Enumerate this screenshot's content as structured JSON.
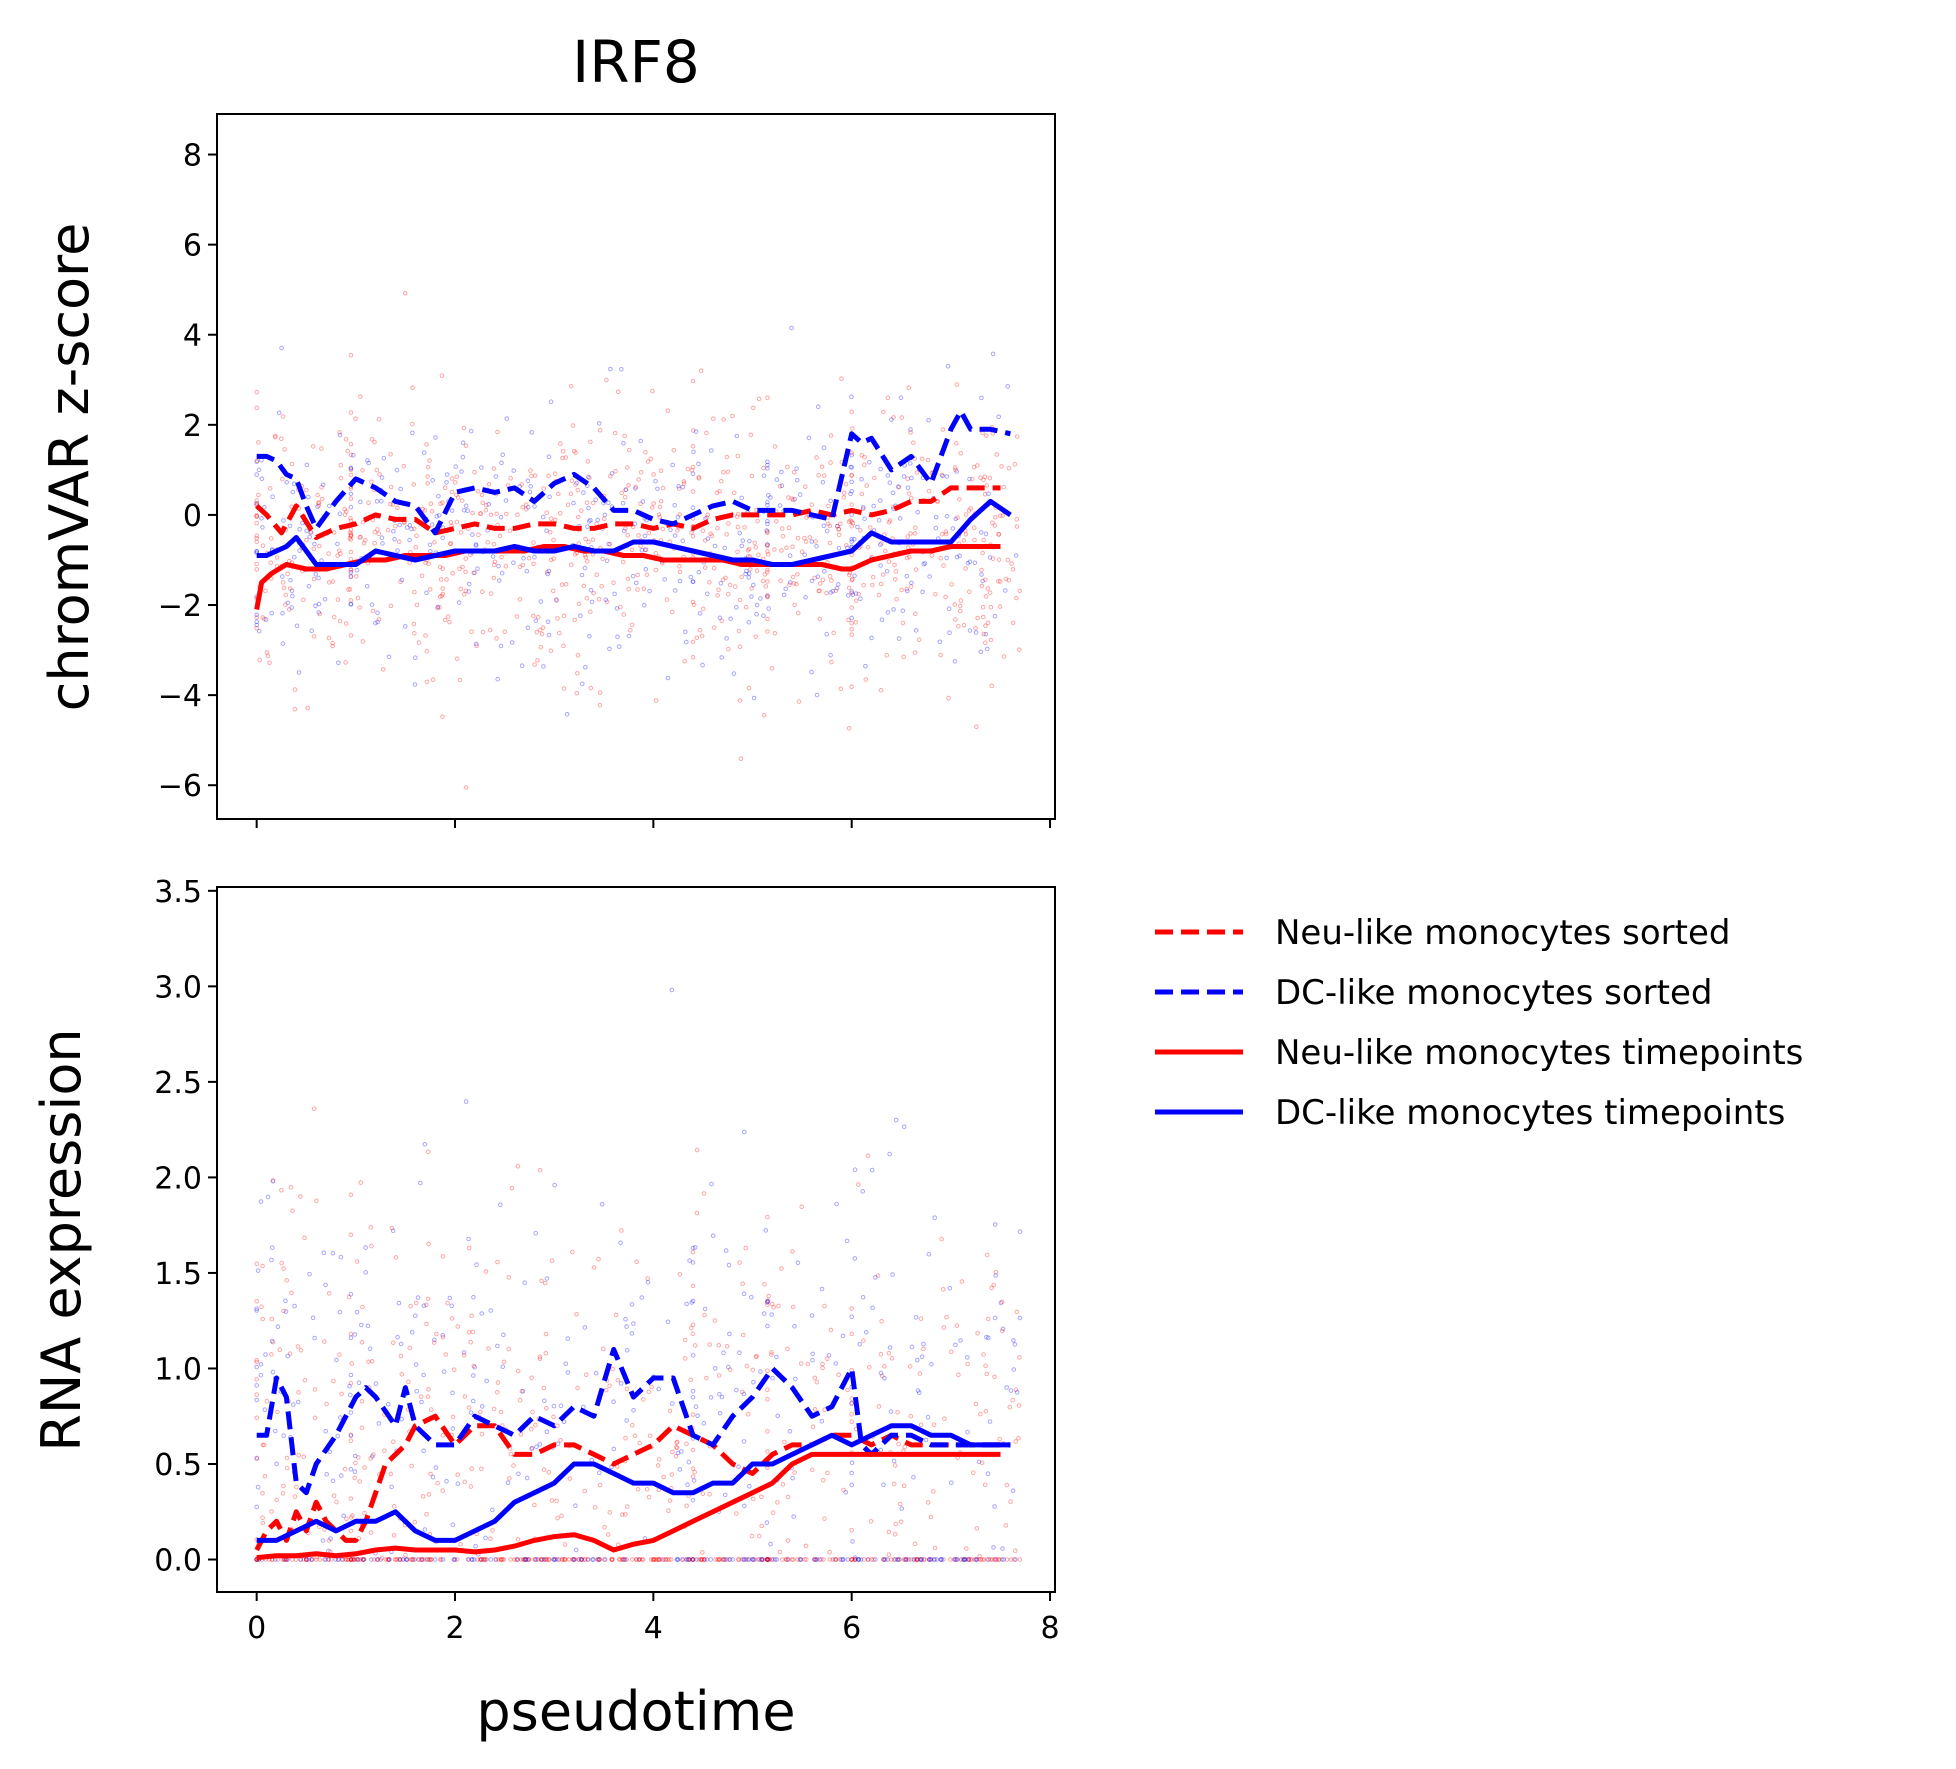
{
  "chart_data": [
    {
      "panel": "top",
      "type": "line",
      "title": "IRF8",
      "xlabel": "",
      "ylabel": "chromVAR z-score",
      "xlim": [
        -0.4,
        8.05
      ],
      "ylim": [
        -6.75,
        8.9
      ],
      "xticks": [
        0,
        2,
        4,
        6,
        8
      ],
      "xtick_labels_visible": false,
      "yticks": [
        -6,
        -4,
        -2,
        0,
        2,
        4,
        6,
        8
      ],
      "ytick_labels": [
        "−6",
        "−4",
        "−2",
        "0",
        "2",
        "4",
        "6",
        "8"
      ],
      "grid": false,
      "scatter": "dense red and blue points, roughly -5 to 8",
      "series": [
        {
          "name": "Neu-like monocytes sorted",
          "style": "dashed",
          "color": "#ff0000",
          "x": [
            0,
            0.1,
            0.25,
            0.4,
            0.6,
            0.8,
            1.0,
            1.2,
            1.4,
            1.6,
            1.8,
            2.0,
            2.2,
            2.4,
            2.6,
            2.8,
            3.0,
            3.2,
            3.4,
            3.6,
            3.8,
            4.0,
            4.2,
            4.4,
            4.6,
            4.8,
            5.0,
            5.2,
            5.4,
            5.6,
            5.8,
            6.0,
            6.2,
            6.4,
            6.6,
            6.8,
            7.0,
            7.2,
            7.5
          ],
          "y": [
            0.2,
            0.0,
            -0.4,
            0.2,
            -0.5,
            -0.3,
            -0.2,
            0.0,
            -0.1,
            -0.1,
            -0.4,
            -0.3,
            -0.2,
            -0.3,
            -0.3,
            -0.2,
            -0.2,
            -0.3,
            -0.3,
            -0.2,
            -0.2,
            -0.3,
            -0.2,
            -0.3,
            -0.1,
            0.0,
            0.0,
            0.0,
            0.0,
            0.1,
            0.0,
            0.1,
            0.0,
            0.1,
            0.3,
            0.3,
            0.6,
            0.6,
            0.6
          ]
        },
        {
          "name": "DC-like monocytes sorted",
          "style": "dashed",
          "color": "#0000ff",
          "x": [
            0,
            0.1,
            0.2,
            0.3,
            0.4,
            0.5,
            0.6,
            0.8,
            1.0,
            1.2,
            1.4,
            1.6,
            1.8,
            2.0,
            2.2,
            2.4,
            2.6,
            2.8,
            3.0,
            3.2,
            3.4,
            3.6,
            3.8,
            4.0,
            4.2,
            4.4,
            4.6,
            4.8,
            5.0,
            5.2,
            5.4,
            5.6,
            5.8,
            6.0,
            6.1,
            6.2,
            6.4,
            6.6,
            6.8,
            7.0,
            7.1,
            7.2,
            7.4,
            7.6
          ],
          "y": [
            1.3,
            1.3,
            1.2,
            0.9,
            0.8,
            0.2,
            -0.3,
            0.3,
            0.8,
            0.6,
            0.3,
            0.2,
            -0.4,
            0.5,
            0.6,
            0.5,
            0.6,
            0.3,
            0.7,
            0.9,
            0.6,
            0.1,
            0.1,
            -0.1,
            -0.2,
            0.0,
            0.2,
            0.3,
            0.1,
            0.1,
            0.1,
            0.0,
            -0.1,
            1.8,
            1.6,
            1.7,
            1.0,
            1.3,
            0.7,
            1.9,
            2.3,
            1.9,
            1.9,
            1.8
          ]
        },
        {
          "name": "Neu-like monocytes timepoints",
          "style": "solid",
          "color": "#ff0000",
          "x": [
            0,
            0.05,
            0.15,
            0.3,
            0.5,
            0.7,
            0.9,
            1.1,
            1.3,
            1.5,
            1.7,
            1.9,
            2.1,
            2.3,
            2.5,
            2.7,
            2.9,
            3.1,
            3.3,
            3.5,
            3.7,
            3.9,
            4.1,
            4.3,
            4.5,
            4.7,
            4.9,
            5.1,
            5.3,
            5.5,
            5.7,
            5.9,
            6.0,
            6.2,
            6.4,
            6.6,
            6.8,
            7.0,
            7.5
          ],
          "y": [
            -2.1,
            -1.5,
            -1.3,
            -1.1,
            -1.2,
            -1.2,
            -1.1,
            -1.0,
            -1.0,
            -0.9,
            -0.9,
            -0.9,
            -0.8,
            -0.8,
            -0.8,
            -0.8,
            -0.7,
            -0.7,
            -0.8,
            -0.8,
            -0.9,
            -0.9,
            -1.0,
            -1.0,
            -1.0,
            -1.0,
            -1.1,
            -1.1,
            -1.1,
            -1.1,
            -1.1,
            -1.2,
            -1.2,
            -1.0,
            -0.9,
            -0.8,
            -0.8,
            -0.7,
            -0.7
          ]
        },
        {
          "name": "DC-like monocytes timepoints",
          "style": "solid",
          "color": "#0000ff",
          "x": [
            0,
            0.1,
            0.2,
            0.3,
            0.4,
            0.5,
            0.6,
            0.8,
            1.0,
            1.2,
            1.4,
            1.6,
            1.8,
            2.0,
            2.2,
            2.4,
            2.6,
            2.8,
            3.0,
            3.2,
            3.4,
            3.6,
            3.8,
            4.0,
            4.2,
            4.4,
            4.6,
            4.8,
            5.0,
            5.2,
            5.4,
            5.6,
            5.8,
            6.0,
            6.2,
            6.4,
            6.6,
            6.8,
            7.0,
            7.2,
            7.4,
            7.6
          ],
          "y": [
            -0.9,
            -0.9,
            -0.8,
            -0.7,
            -0.5,
            -0.8,
            -1.1,
            -1.1,
            -1.1,
            -0.8,
            -0.9,
            -1.0,
            -0.9,
            -0.8,
            -0.8,
            -0.8,
            -0.7,
            -0.8,
            -0.8,
            -0.7,
            -0.8,
            -0.8,
            -0.6,
            -0.6,
            -0.7,
            -0.8,
            -0.9,
            -1.0,
            -1.0,
            -1.1,
            -1.1,
            -1.0,
            -0.9,
            -0.8,
            -0.4,
            -0.6,
            -0.6,
            -0.6,
            -0.6,
            -0.1,
            0.3,
            0.0
          ]
        }
      ]
    },
    {
      "panel": "bottom",
      "type": "line",
      "title": "",
      "xlabel": "pseudotime",
      "ylabel": "RNA expression",
      "xlim": [
        -0.4,
        8.05
      ],
      "ylim": [
        -0.17,
        3.52
      ],
      "xticks": [
        0,
        2,
        4,
        6,
        8
      ],
      "xtick_labels": [
        "0",
        "2",
        "4",
        "6",
        "8"
      ],
      "yticks": [
        0.0,
        0.5,
        1.0,
        1.5,
        2.0,
        2.5,
        3.0,
        3.5
      ],
      "ytick_labels": [
        "0.0",
        "0.5",
        "1.0",
        "1.5",
        "2.0",
        "2.5",
        "3.0",
        "3.5"
      ],
      "grid": false,
      "scatter": "dense red and blue points, roughly 0 to 3.3, many at 0",
      "series": [
        {
          "name": "Neu-like monocytes sorted",
          "style": "dashed",
          "color": "#ff0000",
          "x": [
            0,
            0.1,
            0.2,
            0.3,
            0.4,
            0.5,
            0.6,
            0.7,
            0.8,
            0.9,
            1.0,
            1.1,
            1.2,
            1.3,
            1.4,
            1.5,
            1.6,
            1.8,
            2.0,
            2.2,
            2.4,
            2.6,
            2.8,
            3.0,
            3.2,
            3.4,
            3.6,
            3.8,
            4.0,
            4.2,
            4.4,
            4.6,
            4.8,
            5.0,
            5.2,
            5.4,
            5.6,
            5.8,
            6.0,
            6.2,
            6.4,
            6.6,
            6.8,
            7.0,
            7.2,
            7.5
          ],
          "y": [
            0.05,
            0.15,
            0.2,
            0.1,
            0.25,
            0.15,
            0.3,
            0.2,
            0.15,
            0.1,
            0.1,
            0.2,
            0.35,
            0.5,
            0.55,
            0.6,
            0.7,
            0.75,
            0.6,
            0.7,
            0.7,
            0.55,
            0.55,
            0.6,
            0.6,
            0.55,
            0.5,
            0.55,
            0.6,
            0.7,
            0.65,
            0.6,
            0.5,
            0.45,
            0.55,
            0.6,
            0.6,
            0.65,
            0.65,
            0.6,
            0.65,
            0.6,
            0.6,
            0.6,
            0.6,
            0.6
          ]
        },
        {
          "name": "DC-like monocytes sorted",
          "style": "dashed",
          "color": "#0000ff",
          "x": [
            0,
            0.1,
            0.2,
            0.3,
            0.4,
            0.5,
            0.6,
            0.8,
            1.0,
            1.1,
            1.2,
            1.4,
            1.5,
            1.6,
            1.8,
            2.0,
            2.2,
            2.4,
            2.6,
            2.8,
            3.0,
            3.2,
            3.4,
            3.6,
            3.8,
            4.0,
            4.2,
            4.4,
            4.6,
            4.8,
            5.0,
            5.2,
            5.4,
            5.6,
            5.8,
            6.0,
            6.1,
            6.2,
            6.4,
            6.6,
            6.8,
            7.0,
            7.2,
            7.4,
            7.6
          ],
          "y": [
            0.65,
            0.65,
            0.95,
            0.85,
            0.4,
            0.35,
            0.5,
            0.65,
            0.85,
            0.9,
            0.85,
            0.7,
            0.9,
            0.7,
            0.6,
            0.6,
            0.75,
            0.7,
            0.65,
            0.75,
            0.7,
            0.8,
            0.75,
            1.1,
            0.85,
            0.95,
            0.95,
            0.65,
            0.6,
            0.75,
            0.85,
            1.0,
            0.9,
            0.75,
            0.8,
            1.0,
            0.6,
            0.55,
            0.65,
            0.65,
            0.6,
            0.6,
            0.6,
            0.6,
            0.6
          ]
        },
        {
          "name": "Neu-like monocytes timepoints",
          "style": "solid",
          "color": "#ff0000",
          "x": [
            0,
            0.2,
            0.4,
            0.6,
            0.8,
            1.0,
            1.2,
            1.4,
            1.6,
            1.8,
            2.0,
            2.2,
            2.4,
            2.6,
            2.8,
            3.0,
            3.2,
            3.4,
            3.6,
            3.8,
            4.0,
            4.2,
            4.4,
            4.6,
            4.8,
            5.0,
            5.2,
            5.4,
            5.6,
            5.8,
            6.0,
            6.2,
            6.4,
            6.6,
            6.8,
            7.0,
            7.2,
            7.5
          ],
          "y": [
            0.01,
            0.02,
            0.02,
            0.03,
            0.02,
            0.03,
            0.05,
            0.06,
            0.05,
            0.05,
            0.05,
            0.04,
            0.05,
            0.07,
            0.1,
            0.12,
            0.13,
            0.1,
            0.05,
            0.08,
            0.1,
            0.15,
            0.2,
            0.25,
            0.3,
            0.35,
            0.4,
            0.5,
            0.55,
            0.55,
            0.55,
            0.55,
            0.55,
            0.55,
            0.55,
            0.55,
            0.55,
            0.55
          ]
        },
        {
          "name": "DC-like monocytes timepoints",
          "style": "solid",
          "color": "#0000ff",
          "x": [
            0,
            0.2,
            0.4,
            0.6,
            0.8,
            1.0,
            1.2,
            1.4,
            1.6,
            1.8,
            2.0,
            2.2,
            2.4,
            2.6,
            2.8,
            3.0,
            3.2,
            3.4,
            3.6,
            3.8,
            4.0,
            4.2,
            4.4,
            4.6,
            4.8,
            5.0,
            5.2,
            5.4,
            5.6,
            5.8,
            6.0,
            6.2,
            6.4,
            6.6,
            6.8,
            7.0,
            7.2,
            7.4,
            7.6
          ],
          "y": [
            0.1,
            0.1,
            0.15,
            0.2,
            0.15,
            0.2,
            0.2,
            0.25,
            0.15,
            0.1,
            0.1,
            0.15,
            0.2,
            0.3,
            0.35,
            0.4,
            0.5,
            0.5,
            0.45,
            0.4,
            0.4,
            0.35,
            0.35,
            0.4,
            0.4,
            0.5,
            0.5,
            0.55,
            0.6,
            0.65,
            0.6,
            0.65,
            0.7,
            0.7,
            0.65,
            0.65,
            0.6,
            0.6,
            0.6
          ]
        }
      ]
    }
  ],
  "legend": {
    "placement": "right",
    "entries": [
      {
        "label": "Neu-like monocytes sorted",
        "style": "dashed",
        "color": "#ff0000"
      },
      {
        "label": "DC-like monocytes sorted",
        "style": "dashed",
        "color": "#0000ff"
      },
      {
        "label": "Neu-like monocytes timepoints",
        "style": "solid",
        "color": "#ff0000"
      },
      {
        "label": "DC-like monocytes timepoints",
        "style": "solid",
        "color": "#0000ff"
      }
    ]
  }
}
